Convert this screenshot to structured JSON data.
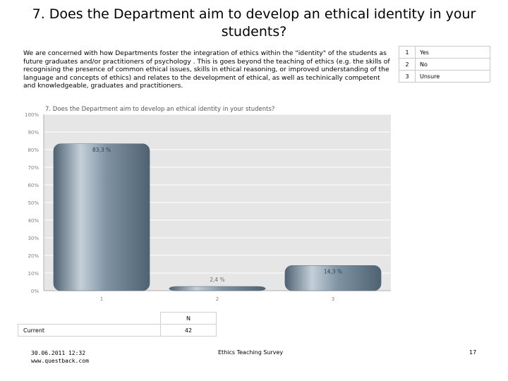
{
  "title": "7. Does the Department aim to develop an ethical identity in your students?",
  "intro": "We are concerned with how Departments foster the integration of ethics within the \"identity\" of the students as future graduates and/or practitioners of psychology . This is goes beyond the teaching of ethics (e.g. the skills of recognising the presence of common ethical issues, skills in ethical reasoning, or improved understanding of the language and concepts of ethics) and relates to the development of ethical, as well as techinically competent and knowledgeable, graduates and practitioners.",
  "legend": [
    {
      "code": "1",
      "label": "Yes"
    },
    {
      "code": "2",
      "label": "No"
    },
    {
      "code": "3",
      "label": "Unsure"
    }
  ],
  "chart_data": {
    "type": "bar",
    "title": "7. Does the Department aim to develop an ethical identity in your students?",
    "categories": [
      "1",
      "2",
      "3"
    ],
    "values": [
      83.3,
      2.4,
      14.3
    ],
    "data_labels": [
      "83,3 %",
      "2,4 %",
      "14,3 %"
    ],
    "yticks": [
      "0%",
      "10%",
      "20%",
      "30%",
      "40%",
      "50%",
      "60%",
      "70%",
      "80%",
      "90%",
      "100%"
    ],
    "ylim": [
      0,
      100
    ],
    "xlabel": "",
    "ylabel": "",
    "grid": true,
    "colors": {
      "bar": "#7f93a3",
      "bar_light": "#c4d0d9",
      "bar_dark": "#4f6272",
      "plot_bg": "#e6e6e6",
      "grid": "#ffffff",
      "axis_text": "#808080"
    }
  },
  "n_table": {
    "header": "N",
    "row_label": "Current",
    "row_value": "42"
  },
  "footer": {
    "date": "30.06.2011 12:32",
    "site": "www.questback.com",
    "survey": "Ethics Teaching Survey",
    "page": "17"
  }
}
